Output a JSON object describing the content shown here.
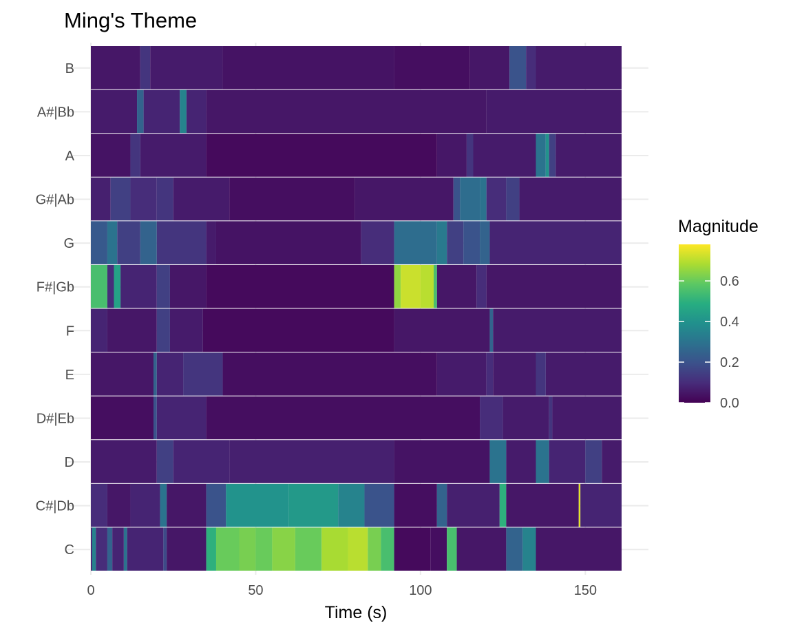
{
  "chart_data": {
    "type": "heatmap",
    "title": "Ming's Theme",
    "xlabel": "Time (s)",
    "ylabel": "",
    "xlim": [
      0,
      161
    ],
    "x_ticks": [
      0,
      50,
      100,
      150
    ],
    "pitches": [
      "C",
      "C#|Db",
      "D",
      "D#|Eb",
      "E",
      "F",
      "F#|Gb",
      "G",
      "G#|Ab",
      "A",
      "A#|Bb",
      "B"
    ],
    "legend": {
      "title": "Magnitude",
      "breaks": [
        "0.0",
        "0.2",
        "0.4",
        "0.6"
      ],
      "break_values": [
        0.0,
        0.2,
        0.4,
        0.6
      ],
      "range": [
        0,
        0.78
      ],
      "placement": "right",
      "colormap": "viridis"
    },
    "grid": true,
    "magnitude_segments": {
      "C": [
        [
          0,
          0.08
        ],
        [
          0.4,
          0.35
        ],
        [
          1.5,
          0.1
        ],
        [
          5,
          0.25
        ],
        [
          6.5,
          0.08
        ],
        [
          10,
          0.3
        ],
        [
          11,
          0.08
        ],
        [
          22,
          0.18
        ],
        [
          23,
          0.05
        ],
        [
          35,
          0.5
        ],
        [
          38,
          0.6
        ],
        [
          45,
          0.62
        ],
        [
          50,
          0.6
        ],
        [
          55,
          0.64
        ],
        [
          62,
          0.6
        ],
        [
          70,
          0.68
        ],
        [
          78,
          0.7
        ],
        [
          84,
          0.62
        ],
        [
          88,
          0.55
        ],
        [
          92,
          0.02
        ],
        [
          103,
          0.03
        ],
        [
          108,
          0.55
        ],
        [
          111,
          0.05
        ],
        [
          126,
          0.25
        ],
        [
          131,
          0.35
        ],
        [
          135,
          0.05
        ],
        [
          161,
          0.05
        ]
      ],
      "C#|Db": [
        [
          0,
          0.1
        ],
        [
          5,
          0.05
        ],
        [
          12,
          0.08
        ],
        [
          21,
          0.3
        ],
        [
          23,
          0.05
        ],
        [
          35,
          0.2
        ],
        [
          41,
          0.4
        ],
        [
          60,
          0.42
        ],
        [
          75,
          0.35
        ],
        [
          83,
          0.2
        ],
        [
          92,
          0.03
        ],
        [
          105,
          0.25
        ],
        [
          108,
          0.07
        ],
        [
          124,
          0.5
        ],
        [
          126,
          0.05
        ],
        [
          148,
          0.75
        ],
        [
          148.5,
          0.08
        ],
        [
          161,
          0.08
        ]
      ],
      "D": [
        [
          0,
          0.06
        ],
        [
          20,
          0.15
        ],
        [
          25,
          0.08
        ],
        [
          42,
          0.07
        ],
        [
          92,
          0.04
        ],
        [
          121,
          0.3
        ],
        [
          126,
          0.06
        ],
        [
          135,
          0.3
        ],
        [
          139,
          0.08
        ],
        [
          150,
          0.15
        ],
        [
          155,
          0.06
        ],
        [
          161,
          0.06
        ]
      ],
      "D#|Eb": [
        [
          0,
          0.03
        ],
        [
          19,
          0.2
        ],
        [
          20,
          0.08
        ],
        [
          35,
          0.03
        ],
        [
          118,
          0.1
        ],
        [
          125,
          0.06
        ],
        [
          139,
          0.12
        ],
        [
          140,
          0.06
        ],
        [
          161,
          0.06
        ]
      ],
      "E": [
        [
          0,
          0.05
        ],
        [
          19,
          0.25
        ],
        [
          20,
          0.08
        ],
        [
          28,
          0.12
        ],
        [
          40,
          0.03
        ],
        [
          105,
          0.06
        ],
        [
          120,
          0.1
        ],
        [
          122,
          0.06
        ],
        [
          135,
          0.12
        ],
        [
          138,
          0.06
        ],
        [
          161,
          0.06
        ]
      ],
      "F": [
        [
          0,
          0.08
        ],
        [
          5,
          0.05
        ],
        [
          20,
          0.15
        ],
        [
          24,
          0.06
        ],
        [
          34,
          0.02
        ],
        [
          92,
          0.05
        ],
        [
          121,
          0.25
        ],
        [
          122,
          0.06
        ],
        [
          161,
          0.05
        ]
      ],
      "F#|Gb": [
        [
          0,
          0.55
        ],
        [
          5,
          0.1
        ],
        [
          7,
          0.45
        ],
        [
          9,
          0.08
        ],
        [
          20,
          0.15
        ],
        [
          24,
          0.05
        ],
        [
          35,
          0.02
        ],
        [
          92,
          0.65
        ],
        [
          94,
          0.72
        ],
        [
          100,
          0.7
        ],
        [
          104,
          0.55
        ],
        [
          105,
          0.05
        ],
        [
          117,
          0.1
        ],
        [
          120,
          0.05
        ],
        [
          161,
          0.05
        ]
      ],
      "G": [
        [
          0,
          0.22
        ],
        [
          5,
          0.3
        ],
        [
          8,
          0.15
        ],
        [
          15,
          0.25
        ],
        [
          20,
          0.12
        ],
        [
          35,
          0.06
        ],
        [
          38,
          0.04
        ],
        [
          82,
          0.1
        ],
        [
          92,
          0.28
        ],
        [
          105,
          0.32
        ],
        [
          108,
          0.15
        ],
        [
          113,
          0.2
        ],
        [
          118,
          0.25
        ],
        [
          121,
          0.08
        ],
        [
          161,
          0.08
        ]
      ],
      "G#|Ab": [
        [
          0,
          0.07
        ],
        [
          6,
          0.15
        ],
        [
          12,
          0.1
        ],
        [
          20,
          0.12
        ],
        [
          25,
          0.06
        ],
        [
          42,
          0.03
        ],
        [
          80,
          0.05
        ],
        [
          110,
          0.2
        ],
        [
          112,
          0.28
        ],
        [
          118,
          0.3
        ],
        [
          120,
          0.1
        ],
        [
          126,
          0.15
        ],
        [
          130,
          0.06
        ],
        [
          161,
          0.06
        ]
      ],
      "A": [
        [
          0,
          0.04
        ],
        [
          12,
          0.12
        ],
        [
          15,
          0.06
        ],
        [
          35,
          0.02
        ],
        [
          105,
          0.05
        ],
        [
          114,
          0.12
        ],
        [
          116,
          0.06
        ],
        [
          135,
          0.3
        ],
        [
          138,
          0.4
        ],
        [
          139,
          0.15
        ],
        [
          141,
          0.06
        ],
        [
          161,
          0.06
        ]
      ],
      "A#|Bb": [
        [
          0,
          0.06
        ],
        [
          14,
          0.25
        ],
        [
          16,
          0.08
        ],
        [
          27,
          0.35
        ],
        [
          29,
          0.08
        ],
        [
          35,
          0.05
        ],
        [
          120,
          0.06
        ],
        [
          161,
          0.06
        ]
      ],
      "B": [
        [
          0,
          0.05
        ],
        [
          15,
          0.12
        ],
        [
          18,
          0.06
        ],
        [
          40,
          0.04
        ],
        [
          92,
          0.03
        ],
        [
          115,
          0.05
        ],
        [
          127,
          0.2
        ],
        [
          132,
          0.1
        ],
        [
          135,
          0.06
        ],
        [
          161,
          0.06
        ]
      ]
    }
  }
}
